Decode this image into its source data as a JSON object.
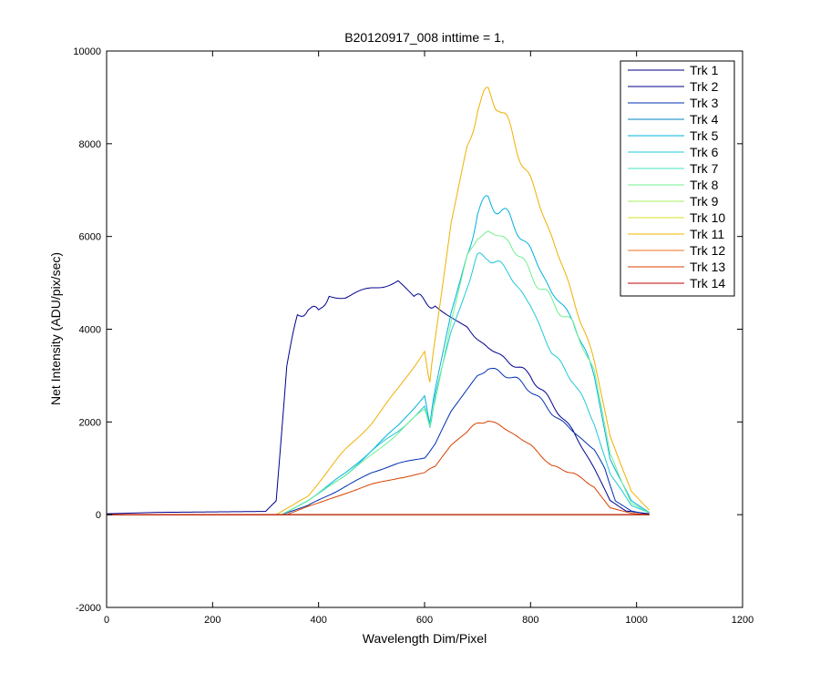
{
  "chart_data": {
    "type": "line",
    "title": "B20120917_008 inttime = 1,",
    "xlabel": "Wavelength Dim/Pixel",
    "ylabel": "Net Intensity (ADU/pix/sec)",
    "xlim": [
      0,
      1200
    ],
    "ylim": [
      -2000,
      10000
    ],
    "xticks": [
      "0",
      "200",
      "400",
      "600",
      "800",
      "1000",
      "1200"
    ],
    "yticks": [
      "-2000",
      "0",
      "2000",
      "4000",
      "6000",
      "8000",
      "10000"
    ],
    "grid": false,
    "legend_position": "top-right",
    "series": [
      {
        "name": "Trk 1",
        "color": "#000080",
        "points": [
          [
            0,
            0
          ],
          [
            1024,
            0
          ]
        ]
      },
      {
        "name": "Trk 2",
        "color": "#00008f",
        "points": [
          [
            0,
            20
          ],
          [
            100,
            50
          ],
          [
            200,
            60
          ],
          [
            300,
            70
          ],
          [
            320,
            300
          ],
          [
            340,
            3200
          ],
          [
            360,
            4300
          ],
          [
            380,
            4450
          ],
          [
            400,
            4350
          ],
          [
            420,
            4800
          ],
          [
            450,
            4750
          ],
          [
            500,
            4900
          ],
          [
            550,
            5000
          ],
          [
            580,
            4700
          ],
          [
            600,
            4600
          ],
          [
            620,
            4550
          ],
          [
            650,
            4300
          ],
          [
            680,
            4000
          ],
          [
            700,
            3800
          ],
          [
            720,
            3600
          ],
          [
            760,
            3300
          ],
          [
            800,
            3000
          ],
          [
            840,
            2400
          ],
          [
            880,
            1800
          ],
          [
            920,
            1000
          ],
          [
            950,
            300
          ],
          [
            980,
            80
          ],
          [
            1024,
            20
          ]
        ]
      },
      {
        "name": "Trk 3",
        "color": "#0030b0",
        "points": [
          [
            0,
            0
          ],
          [
            330,
            0
          ],
          [
            380,
            200
          ],
          [
            450,
            600
          ],
          [
            500,
            900
          ],
          [
            550,
            1100
          ],
          [
            600,
            1250
          ],
          [
            620,
            1500
          ],
          [
            650,
            2200
          ],
          [
            680,
            2700
          ],
          [
            700,
            3000
          ],
          [
            720,
            3150
          ],
          [
            760,
            3000
          ],
          [
            800,
            2700
          ],
          [
            840,
            2200
          ],
          [
            880,
            1800
          ],
          [
            920,
            1400
          ],
          [
            940,
            1000
          ],
          [
            960,
            300
          ],
          [
            990,
            80
          ],
          [
            1024,
            0
          ]
        ]
      },
      {
        "name": "Trk 4",
        "color": "#0080c0",
        "points": [
          [
            0,
            0
          ],
          [
            1024,
            0
          ]
        ]
      },
      {
        "name": "Trk 5",
        "color": "#00b0e0",
        "points": [
          [
            0,
            0
          ],
          [
            330,
            0
          ],
          [
            380,
            300
          ],
          [
            450,
            900
          ],
          [
            500,
            1400
          ],
          [
            550,
            1900
          ],
          [
            600,
            2550
          ],
          [
            610,
            2000
          ],
          [
            620,
            2700
          ],
          [
            650,
            4400
          ],
          [
            680,
            5600
          ],
          [
            700,
            6500
          ],
          [
            720,
            6800
          ],
          [
            760,
            6400
          ],
          [
            800,
            5700
          ],
          [
            840,
            4800
          ],
          [
            880,
            4200
          ],
          [
            920,
            3000
          ],
          [
            950,
            1200
          ],
          [
            990,
            300
          ],
          [
            1024,
            50
          ]
        ]
      },
      {
        "name": "Trk 6",
        "color": "#20c8d8",
        "points": [
          [
            0,
            0
          ],
          [
            330,
            0
          ],
          [
            380,
            300
          ],
          [
            450,
            850
          ],
          [
            500,
            1350
          ],
          [
            550,
            1800
          ],
          [
            600,
            2350
          ],
          [
            610,
            1900
          ],
          [
            620,
            2550
          ],
          [
            650,
            4000
          ],
          [
            680,
            5000
          ],
          [
            700,
            5500
          ],
          [
            720,
            5600
          ],
          [
            760,
            5200
          ],
          [
            800,
            4500
          ],
          [
            840,
            3500
          ],
          [
            880,
            2900
          ],
          [
            920,
            2000
          ],
          [
            950,
            900
          ],
          [
            990,
            200
          ],
          [
            1024,
            40
          ]
        ]
      },
      {
        "name": "Trk 7",
        "color": "#40e0c0",
        "points": [
          [
            0,
            0
          ],
          [
            1024,
            0
          ]
        ]
      },
      {
        "name": "Trk 8",
        "color": "#70f090",
        "points": [
          [
            0,
            0
          ],
          [
            330,
            0
          ],
          [
            380,
            300
          ],
          [
            450,
            850
          ],
          [
            500,
            1300
          ],
          [
            550,
            1750
          ],
          [
            600,
            2250
          ],
          [
            610,
            1900
          ],
          [
            620,
            2500
          ],
          [
            650,
            4200
          ],
          [
            680,
            5500
          ],
          [
            700,
            6000
          ],
          [
            720,
            6100
          ],
          [
            760,
            5900
          ],
          [
            800,
            5200
          ],
          [
            840,
            4600
          ],
          [
            880,
            4100
          ],
          [
            920,
            3100
          ],
          [
            950,
            1300
          ],
          [
            990,
            250
          ],
          [
            1024,
            40
          ]
        ]
      },
      {
        "name": "Trk 9",
        "color": "#a8f060",
        "points": [
          [
            0,
            0
          ],
          [
            1024,
            0
          ]
        ]
      },
      {
        "name": "Trk 10",
        "color": "#d8e020",
        "points": [
          [
            0,
            0
          ],
          [
            1024,
            0
          ]
        ]
      },
      {
        "name": "Trk 11",
        "color": "#f0b000",
        "points": [
          [
            0,
            0
          ],
          [
            320,
            0
          ],
          [
            380,
            400
          ],
          [
            450,
            1400
          ],
          [
            500,
            2000
          ],
          [
            550,
            2700
          ],
          [
            600,
            3500
          ],
          [
            610,
            2900
          ],
          [
            620,
            3800
          ],
          [
            650,
            6300
          ],
          [
            680,
            7900
          ],
          [
            700,
            8800
          ],
          [
            720,
            9050
          ],
          [
            740,
            8900
          ],
          [
            760,
            8300
          ],
          [
            800,
            7200
          ],
          [
            840,
            6000
          ],
          [
            880,
            4700
          ],
          [
            920,
            3300
          ],
          [
            950,
            1700
          ],
          [
            990,
            500
          ],
          [
            1024,
            100
          ]
        ]
      },
      {
        "name": "Trk 12",
        "color": "#f07020",
        "points": [
          [
            0,
            0
          ],
          [
            1024,
            0
          ]
        ]
      },
      {
        "name": "Trk 13",
        "color": "#d84000",
        "points": [
          [
            0,
            0
          ],
          [
            340,
            0
          ],
          [
            380,
            180
          ],
          [
            450,
            450
          ],
          [
            500,
            650
          ],
          [
            550,
            800
          ],
          [
            600,
            900
          ],
          [
            620,
            1050
          ],
          [
            650,
            1500
          ],
          [
            680,
            1800
          ],
          [
            700,
            1950
          ],
          [
            720,
            2050
          ],
          [
            760,
            1800
          ],
          [
            800,
            1500
          ],
          [
            840,
            1050
          ],
          [
            880,
            900
          ],
          [
            920,
            600
          ],
          [
            950,
            150
          ],
          [
            990,
            30
          ],
          [
            1024,
            0
          ]
        ]
      },
      {
        "name": "Trk 14",
        "color": "#c00000",
        "points": [
          [
            0,
            0
          ],
          [
            1024,
            0
          ]
        ]
      }
    ]
  }
}
